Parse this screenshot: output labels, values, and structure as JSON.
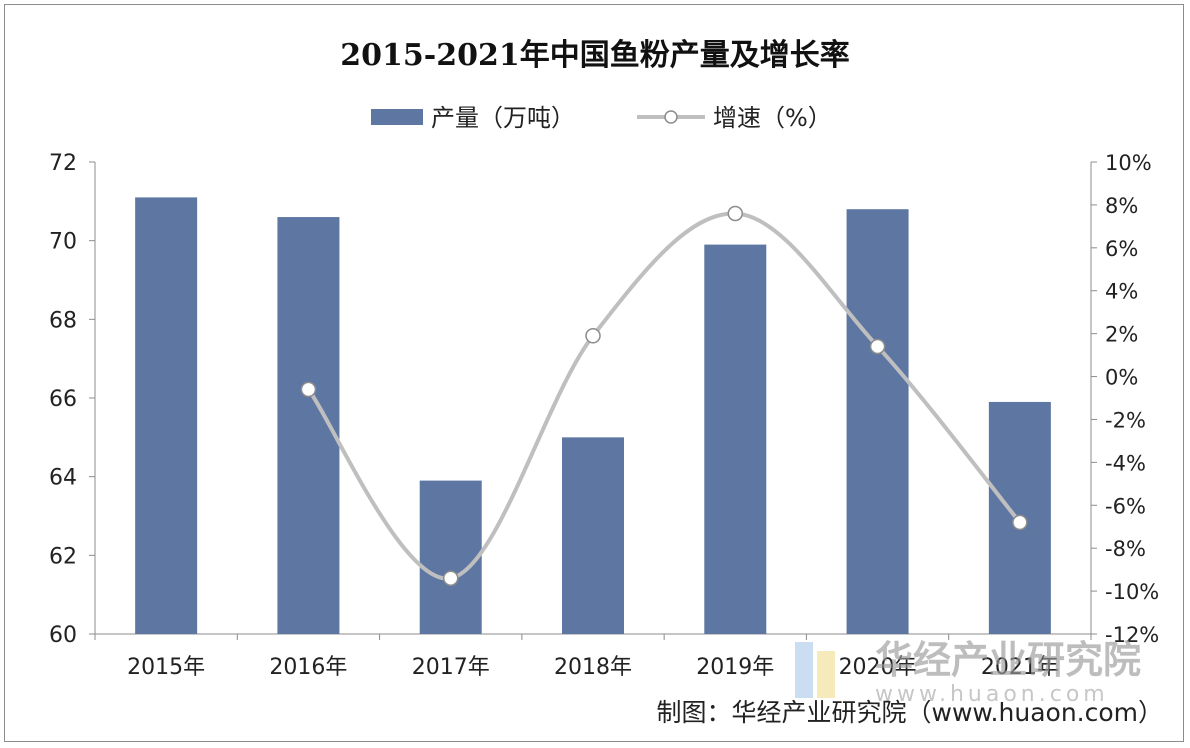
{
  "chart_data": {
    "type": "bar",
    "title": "2015-2021年中国鱼粉产量及增长率",
    "categories": [
      "2015年",
      "2016年",
      "2017年",
      "2018年",
      "2019年",
      "2020年",
      "2021年"
    ],
    "series": [
      {
        "name": "产量（万吨）",
        "type": "bar",
        "axis": "left",
        "values": [
          71.1,
          70.6,
          63.9,
          65.0,
          69.9,
          70.8,
          65.9
        ]
      },
      {
        "name": "增速（%）",
        "type": "line",
        "axis": "right",
        "smooth": true,
        "values": [
          null,
          -0.6,
          -9.4,
          1.9,
          7.6,
          1.4,
          -6.8
        ]
      }
    ],
    "y_left": {
      "min": 60,
      "max": 72,
      "ticks": [
        "60",
        "62",
        "64",
        "66",
        "68",
        "70",
        "72"
      ]
    },
    "y_right": {
      "min": -12,
      "max": 10,
      "ticks": [
        "-12%",
        "-10%",
        "-8%",
        "-6%",
        "-4%",
        "-2%",
        "0%",
        "2%",
        "4%",
        "6%",
        "8%",
        "10%"
      ]
    },
    "legend_position": "top",
    "grid": false,
    "colors": {
      "bar": "#5e77a2",
      "line": "#bfbfbf",
      "marker_fill": "#ffffff",
      "marker_stroke": "#8c8c8c"
    }
  },
  "watermark": {
    "name": "华经产业研究院",
    "url": "www.huaon.com"
  },
  "credit": "制图：华经产业研究院（www.huaon.com）"
}
